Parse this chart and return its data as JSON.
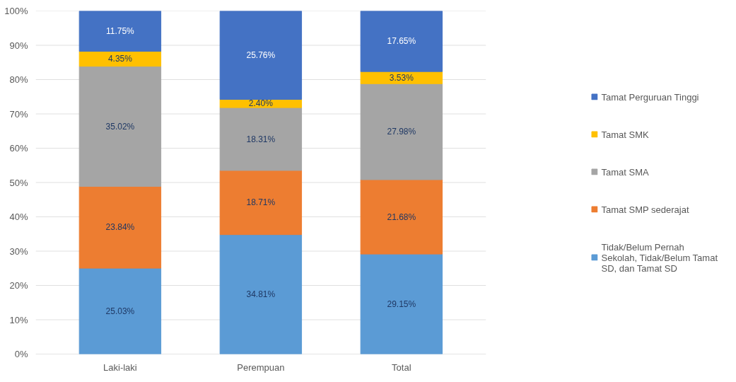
{
  "chart_data": {
    "type": "bar",
    "stacked": true,
    "categories": [
      "Laki-laki",
      "Perempuan",
      "Total"
    ],
    "series": [
      {
        "name": "Tidak/Belum Pernah Sekolah, Tidak/Belum Tamat SD, dan Tamat SD",
        "color": "#5b9bd5",
        "values": [
          25.03,
          34.81,
          29.15
        ],
        "value_labels": [
          "25.03%",
          "34.81%",
          "29.15%"
        ]
      },
      {
        "name": "Tamat SMP sederajat",
        "color": "#ed7d31",
        "values": [
          23.84,
          18.71,
          21.68
        ],
        "value_labels": [
          "23.84%",
          "18.71%",
          "21.68%"
        ]
      },
      {
        "name": "Tamat SMA",
        "color": "#a5a5a5",
        "values": [
          35.02,
          18.31,
          27.98
        ],
        "value_labels": [
          "35.02%",
          "18.31%",
          "27.98%"
        ]
      },
      {
        "name": "Tamat SMK",
        "color": "#ffc000",
        "values": [
          4.35,
          2.4,
          3.53
        ],
        "value_labels": [
          "4.35%",
          "2.40%",
          "3.53%"
        ]
      },
      {
        "name": "Tamat Perguruan Tinggi",
        "color": "#4472c4",
        "values": [
          11.75,
          25.76,
          17.65
        ],
        "value_labels": [
          "11.75%",
          "25.76%",
          "17.65%"
        ]
      }
    ],
    "ylim": [
      0,
      100
    ],
    "yticks": [
      {
        "value": 0,
        "label": "0%"
      },
      {
        "value": 10,
        "label": "10%"
      },
      {
        "value": 20,
        "label": "20%"
      },
      {
        "value": 30,
        "label": "30%"
      },
      {
        "value": 40,
        "label": "40%"
      },
      {
        "value": 50,
        "label": "50%"
      },
      {
        "value": 60,
        "label": "60%"
      },
      {
        "value": 70,
        "label": "70%"
      },
      {
        "value": 80,
        "label": "80%"
      },
      {
        "value": 90,
        "label": "90%"
      },
      {
        "value": 100,
        "label": "100%"
      }
    ],
    "grid": "y",
    "legend": "right"
  }
}
